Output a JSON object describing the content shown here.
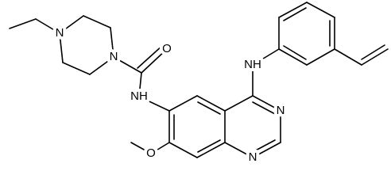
{
  "atoms": [
    {
      "label": "N"
    },
    {
      "label": "N"
    },
    {
      "label": "O"
    },
    {
      "label": "NH"
    },
    {
      "label": "NH"
    },
    {
      "label": "N"
    },
    {
      "label": "N"
    },
    {
      "label": "O"
    }
  ]
}
